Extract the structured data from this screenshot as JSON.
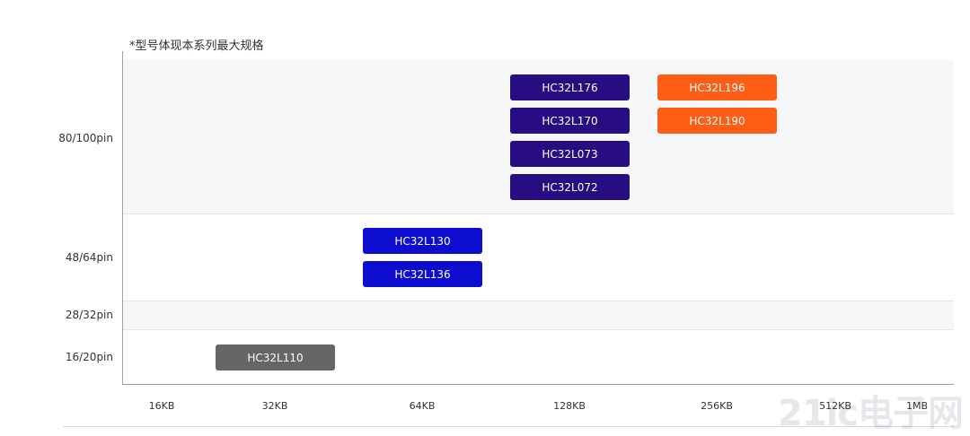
{
  "note": "*型号体现本系列最大规格",
  "colors": {
    "navy": "#270c82",
    "blue": "#0d0dd0",
    "orange": "#fd5d14",
    "gray": "#666666"
  },
  "chart_data": {
    "type": "table",
    "title": "",
    "xlabel": "",
    "ylabel": "",
    "x_categories": [
      "16KB",
      "32KB",
      "64KB",
      "128KB",
      "256KB",
      "512KB",
      "1MB"
    ],
    "y_categories": [
      "80/100pin",
      "48/64pin",
      "28/32pin",
      "16/20pin"
    ],
    "grid": false,
    "legend": "none",
    "products": [
      {
        "name": "HC32L176",
        "row": "80/100pin",
        "col": "128KB",
        "color": "navy"
      },
      {
        "name": "HC32L170",
        "row": "80/100pin",
        "col": "128KB",
        "color": "navy"
      },
      {
        "name": "HC32L073",
        "row": "80/100pin",
        "col": "128KB",
        "color": "navy"
      },
      {
        "name": "HC32L072",
        "row": "80/100pin",
        "col": "128KB",
        "color": "navy"
      },
      {
        "name": "HC32L196",
        "row": "80/100pin",
        "col": "256KB",
        "color": "orange"
      },
      {
        "name": "HC32L190",
        "row": "80/100pin",
        "col": "256KB",
        "color": "orange"
      },
      {
        "name": "HC32L130",
        "row": "48/64pin",
        "col": "64KB",
        "color": "blue"
      },
      {
        "name": "HC32L136",
        "row": "48/64pin",
        "col": "64KB",
        "color": "blue"
      },
      {
        "name": "HC32L110",
        "row": "16/20pin",
        "col": "32KB",
        "color": "gray"
      }
    ]
  }
}
